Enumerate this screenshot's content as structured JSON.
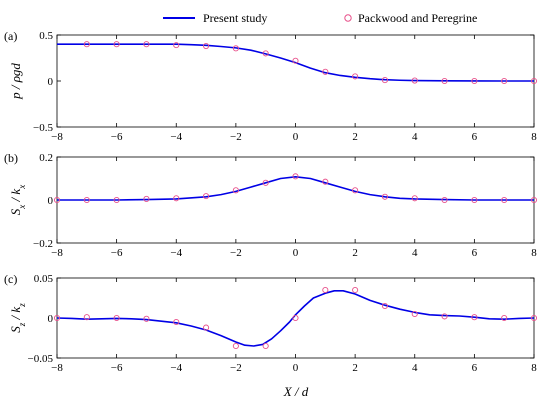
{
  "legend": {
    "items": [
      {
        "label": "Present study",
        "style": "line",
        "color": "#0000e6"
      },
      {
        "label": "Packwood and Peregrine",
        "style": "open-circle",
        "color": "#e8508a"
      }
    ]
  },
  "xlabel": "X / d",
  "chart_data": [
    {
      "type": "line",
      "panel_label": "(a)",
      "ylabel": "p / ρgd",
      "xlim": [
        -8,
        8
      ],
      "ylim": [
        -0.5,
        0.5
      ],
      "xticks": [
        -8,
        -6,
        -4,
        -2,
        0,
        2,
        4,
        6,
        8
      ],
      "yticks": [
        -0.5,
        0,
        0.5
      ],
      "ytick_labels": [
        "−0.5",
        "0",
        "0.5"
      ],
      "series": [
        {
          "name": "Present study",
          "x": [
            -8,
            -7,
            -6,
            -5,
            -4,
            -3.5,
            -3,
            -2.5,
            -2,
            -1.5,
            -1,
            -0.5,
            0,
            0.5,
            1,
            1.5,
            2,
            2.5,
            3,
            3.5,
            4,
            5,
            6,
            7,
            8
          ],
          "y": [
            0.4,
            0.4,
            0.4,
            0.4,
            0.4,
            0.395,
            0.388,
            0.375,
            0.36,
            0.335,
            0.295,
            0.25,
            0.2,
            0.14,
            0.09,
            0.06,
            0.04,
            0.025,
            0.014,
            0.008,
            0.005,
            0.002,
            0.001,
            0.0,
            0.0
          ]
        },
        {
          "name": "Packwood and Peregrine",
          "x": [
            -7,
            -6,
            -5,
            -4,
            -3,
            -2,
            -1,
            0,
            1,
            2,
            3,
            4,
            5,
            6,
            7,
            8
          ],
          "y": [
            0.4,
            0.4,
            0.4,
            0.39,
            0.38,
            0.355,
            0.3,
            0.22,
            0.1,
            0.05,
            0.01,
            0.005,
            0.0,
            0.0,
            0.0,
            0.0
          ]
        }
      ]
    },
    {
      "type": "line",
      "panel_label": "(b)",
      "ylabel": "Sx / kx",
      "xlim": [
        -8,
        8
      ],
      "ylim": [
        -0.2,
        0.2
      ],
      "xticks": [
        -8,
        -6,
        -4,
        -2,
        0,
        2,
        4,
        6,
        8
      ],
      "yticks": [
        -0.2,
        0,
        0.2
      ],
      "ytick_labels": [
        "−0.2",
        "0",
        "0.2"
      ],
      "series": [
        {
          "name": "Present study",
          "x": [
            -8,
            -7,
            -6,
            -5,
            -4,
            -3,
            -2.5,
            -2,
            -1.5,
            -1,
            -0.5,
            0,
            0.5,
            1,
            1.5,
            2,
            2.5,
            3,
            3.5,
            4,
            5,
            6,
            7,
            8
          ],
          "y": [
            0.0,
            0.0,
            0.0,
            0.002,
            0.005,
            0.015,
            0.025,
            0.04,
            0.06,
            0.08,
            0.1,
            0.108,
            0.1,
            0.08,
            0.06,
            0.04,
            0.025,
            0.015,
            0.008,
            0.005,
            0.002,
            0.0,
            0.0,
            0.0
          ]
        },
        {
          "name": "Packwood and Peregrine",
          "x": [
            -8,
            -7,
            -6,
            -5,
            -4,
            -3,
            -2,
            -1,
            0,
            1,
            2,
            3,
            4,
            5,
            6,
            7,
            8
          ],
          "y": [
            0.0,
            0.0,
            0.0,
            0.005,
            0.008,
            0.018,
            0.045,
            0.08,
            0.11,
            0.085,
            0.045,
            0.015,
            0.008,
            0.0,
            0.0,
            0.0,
            0.0
          ]
        }
      ]
    },
    {
      "type": "line",
      "panel_label": "(c)",
      "ylabel": "Sz / kz",
      "xlim": [
        -8,
        8
      ],
      "ylim": [
        -0.05,
        0.05
      ],
      "xticks": [
        -8,
        -6,
        -4,
        -2,
        0,
        2,
        4,
        6,
        8
      ],
      "yticks": [
        -0.05,
        0,
        0.05
      ],
      "ytick_labels": [
        "−0.05",
        "0",
        "0.05"
      ],
      "series": [
        {
          "name": "Present study",
          "x": [
            -8,
            -7.5,
            -7,
            -6.5,
            -6,
            -5.5,
            -5,
            -4.5,
            -4,
            -3.5,
            -3,
            -2.5,
            -2,
            -1.7,
            -1.4,
            -1.1,
            -0.8,
            -0.5,
            -0.2,
            0,
            0.3,
            0.6,
            1,
            1.3,
            1.6,
            2,
            2.5,
            3,
            3.5,
            4,
            4.5,
            5,
            5.5,
            6,
            6.5,
            7,
            7.5,
            8
          ],
          "y": [
            0.0,
            -0.0005,
            -0.0015,
            -0.001,
            -0.0005,
            -0.001,
            -0.002,
            -0.004,
            -0.006,
            -0.01,
            -0.015,
            -0.022,
            -0.03,
            -0.034,
            -0.035,
            -0.033,
            -0.026,
            -0.016,
            -0.005,
            0.004,
            0.015,
            0.025,
            0.031,
            0.034,
            0.034,
            0.03,
            0.022,
            0.016,
            0.011,
            0.007,
            0.004,
            0.003,
            0.0025,
            0.001,
            -0.001,
            -0.0015,
            -0.0005,
            0.0
          ]
        },
        {
          "name": "Packwood and Peregrine",
          "x": [
            -8,
            -7,
            -6,
            -5,
            -4,
            -3,
            -2,
            -1,
            0,
            1,
            2,
            3,
            4,
            5,
            6,
            7,
            8
          ],
          "y": [
            0.0,
            0.001,
            0.0,
            -0.001,
            -0.005,
            -0.012,
            -0.035,
            -0.035,
            0.0,
            0.035,
            0.035,
            0.015,
            0.005,
            0.002,
            0.001,
            0.0,
            0.0
          ]
        }
      ]
    }
  ]
}
